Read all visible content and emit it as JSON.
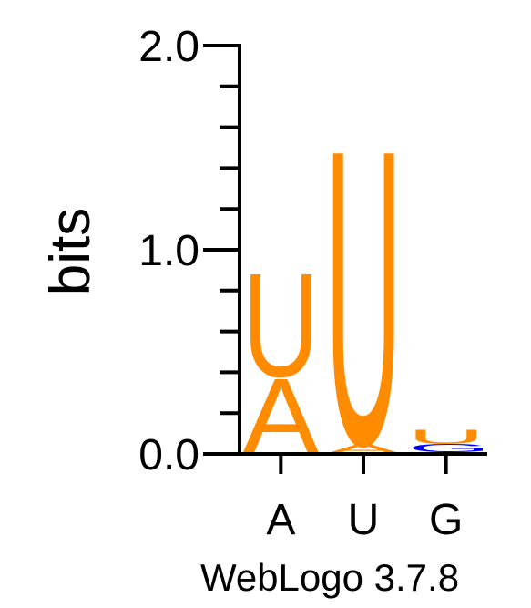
{
  "chart_data": {
    "type": "sequence-logo",
    "ylabel": "bits",
    "xlabel": "",
    "ylim": [
      0,
      2.0
    ],
    "y_ticks": [
      "0.0",
      "1.0",
      "2.0"
    ],
    "y_tick_values": [
      0,
      1.0,
      2.0
    ],
    "positions": [
      "A",
      "U",
      "G"
    ],
    "stacks": [
      {
        "position": "A",
        "letters": [
          {
            "base": "A",
            "bits": 0.38
          },
          {
            "base": "U",
            "bits": 0.52
          }
        ]
      },
      {
        "position": "U",
        "letters": [
          {
            "base": "A",
            "bits": 0.05
          },
          {
            "base": "U",
            "bits": 1.48
          }
        ]
      },
      {
        "position": "G",
        "letters": [
          {
            "base": "C",
            "bits": 0.01
          },
          {
            "base": "G",
            "bits": 0.04
          },
          {
            "base": "U",
            "bits": 0.07
          }
        ]
      }
    ],
    "colors": {
      "A": "#ff8c00",
      "U": "#ff8c00",
      "G": "#0000ff",
      "C": "#0000ff"
    }
  },
  "footer": "WebLogo 3.7.8"
}
